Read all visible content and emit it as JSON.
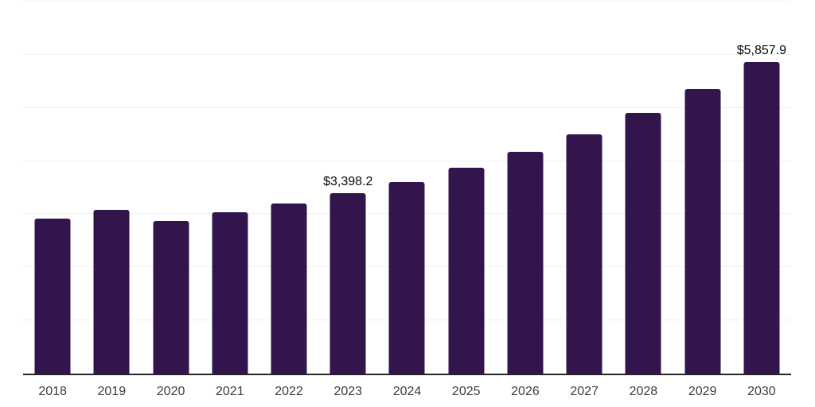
{
  "chart_data": {
    "type": "bar",
    "title": "",
    "xlabel": "",
    "ylabel": "",
    "categories": [
      "2018",
      "2019",
      "2020",
      "2021",
      "2022",
      "2023",
      "2024",
      "2025",
      "2026",
      "2027",
      "2028",
      "2029",
      "2030"
    ],
    "values": [
      2920,
      3080,
      2870,
      3040,
      3200,
      3398.2,
      3600,
      3870,
      4170,
      4500,
      4900,
      5350,
      5857.9
    ],
    "point_labels": [
      "",
      "",
      "",
      "",
      "",
      "$3,398.2",
      "",
      "",
      "",
      "",
      "",
      "",
      "$5,857.9"
    ],
    "ylim": [
      0,
      7000
    ],
    "gridline_step": 1000,
    "grid": "horizontal",
    "y_axis_tick_labels_visible": false,
    "legend": "none"
  },
  "style": {
    "bar_color": "#33154e",
    "axis_line_color": "#262626",
    "gridline_color": "#f0f0f0",
    "tick_label_color": "#3d3d3d",
    "data_label_color": "#0a0a0a",
    "background_color": "#ffffff"
  }
}
